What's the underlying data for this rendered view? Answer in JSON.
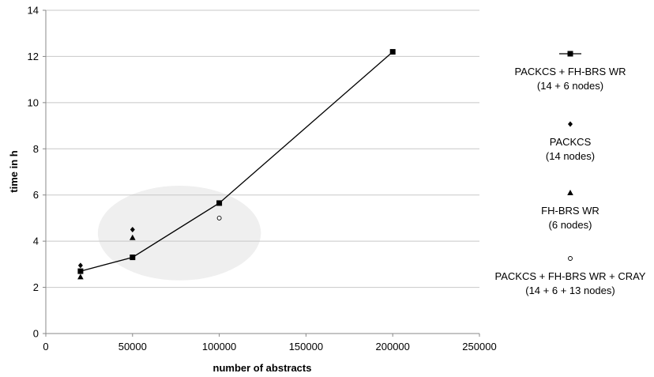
{
  "chart_data": {
    "type": "scatter",
    "xlabel": "number of abstracts",
    "ylabel": "time in h",
    "xlim": [
      0,
      250000
    ],
    "ylim": [
      0,
      14
    ],
    "x_ticks": [
      "0",
      "50000",
      "100000",
      "150000",
      "200000",
      "250000"
    ],
    "y_ticks": [
      "0",
      "2",
      "4",
      "6",
      "8",
      "10",
      "12",
      "14"
    ],
    "grid": "horizontal",
    "legend_position": "right",
    "series": [
      {
        "name": "PACKCS + FH-BRS WR",
        "name_line2": "(14 + 6 nodes)",
        "marker": "square",
        "connected": true,
        "x": [
          20000,
          50000,
          100000,
          200000
        ],
        "y": [
          2.7,
          3.3,
          5.65,
          12.2
        ]
      },
      {
        "name": "PACKCS",
        "name_line2": "(14 nodes)",
        "marker": "diamond",
        "connected": false,
        "x": [
          20000,
          50000
        ],
        "y": [
          2.95,
          4.5
        ]
      },
      {
        "name": "FH-BRS WR",
        "name_line2": "(6 nodes)",
        "marker": "triangle",
        "connected": false,
        "x": [
          20000,
          50000
        ],
        "y": [
          2.45,
          4.15
        ]
      },
      {
        "name": "PACKCS + FH-BRS WR + CRAY",
        "name_line2": "(14 + 6 + 13 nodes)",
        "marker": "circle",
        "connected": false,
        "x": [
          100000
        ],
        "y": [
          5.0
        ]
      }
    ],
    "highlight_ellipse": {
      "cx": 77000,
      "cy": 4.35,
      "rx": 47000,
      "ry": 2.05
    },
    "colors": {
      "line": "#000000",
      "grid": "#c8c8c8",
      "highlight": "#efefef"
    }
  }
}
